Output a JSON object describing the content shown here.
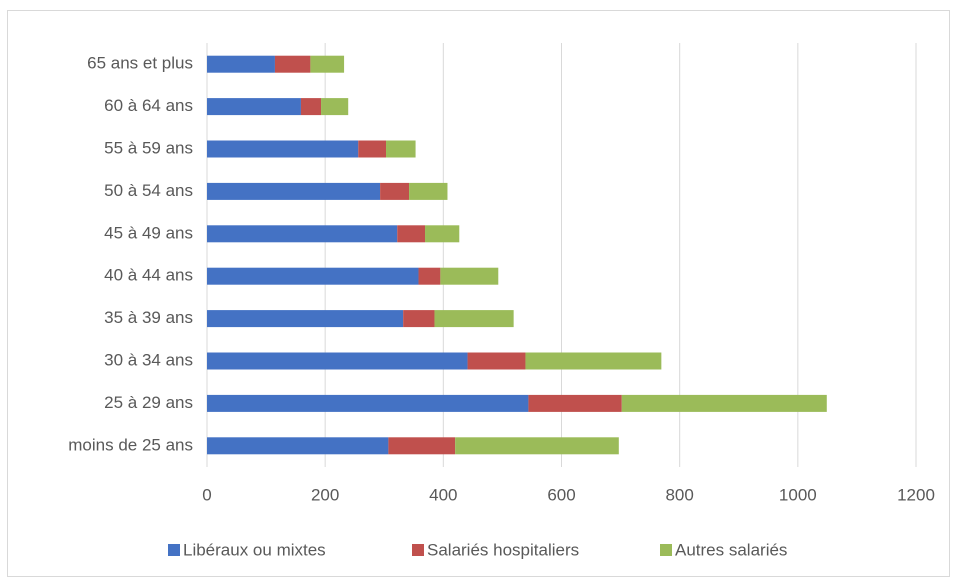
{
  "chart_data": {
    "type": "stacked_bar_horizontal",
    "categories": [
      "moins de 25 ans",
      "25 à 29 ans",
      "30 à 34 ans",
      "35 à 39 ans",
      "40 à 44 ans",
      "45 à 49 ans",
      "50 à 54 ans",
      "55 à 59 ans",
      "60 à 64 ans",
      "65 ans et plus"
    ],
    "series": [
      {
        "name": "Libéraux ou mixtes",
        "color": "#4472c4",
        "values": [
          307,
          544,
          441,
          332,
          358,
          322,
          293,
          256,
          159,
          115
        ]
      },
      {
        "name": "Salariés hospitaliers",
        "color": "#c0504d",
        "values": [
          113,
          158,
          98,
          53,
          37,
          47,
          49,
          47,
          34,
          60
        ]
      },
      {
        "name": "Autres salariés",
        "color": "#9bbb59",
        "values": [
          277,
          347,
          230,
          134,
          98,
          58,
          65,
          50,
          46,
          57
        ]
      }
    ],
    "xlim": [
      0,
      1200
    ],
    "xticks": [
      0,
      200,
      400,
      600,
      800,
      1000,
      1200
    ],
    "grid": true,
    "legend": "bottom"
  }
}
